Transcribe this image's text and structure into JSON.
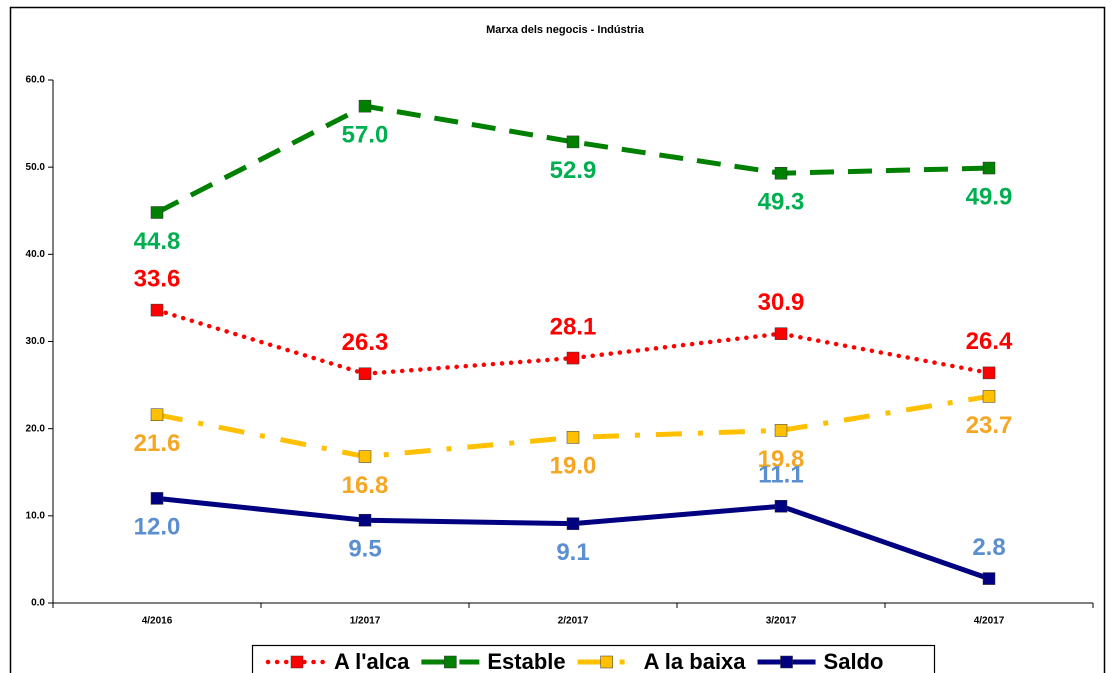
{
  "chart_data": {
    "type": "line",
    "title": "Marxa dels negocis - Indústria",
    "categories": [
      "4/2016",
      "1/2017",
      "2/2017",
      "3/2017",
      "4/2017"
    ],
    "series": [
      {
        "name": "A l'alca",
        "color": "#ff0000",
        "label_color": "#ff0000",
        "line_style": "dotted",
        "values": [
          33.6,
          26.3,
          28.1,
          30.9,
          26.4
        ],
        "value_labels": [
          "33.6",
          "26.3",
          "28.1",
          "30.9",
          "26.4"
        ]
      },
      {
        "name": "Estable",
        "color": "#008000",
        "label_color": "#00b050",
        "line_style": "dashed",
        "values": [
          44.8,
          57.0,
          52.9,
          49.3,
          49.9
        ],
        "value_labels": [
          "44.8",
          "57.0",
          "52.9",
          "49.3",
          "49.9"
        ]
      },
      {
        "name": "A la baixa",
        "color": "#ffc000",
        "label_color": "#f5a623",
        "line_style": "dashdot",
        "values": [
          21.6,
          16.8,
          19.0,
          19.8,
          23.7
        ],
        "value_labels": [
          "21.6",
          "16.8",
          "19.0",
          "19.8",
          "23.7"
        ]
      },
      {
        "name": "Saldo",
        "color": "#000080",
        "label_color": "#5b8fd0",
        "line_style": "solid",
        "values": [
          12.0,
          9.5,
          9.1,
          11.1,
          2.8
        ],
        "value_labels": [
          "12.0",
          "9.5",
          "9.1",
          "11.1",
          "2.8"
        ]
      }
    ],
    "ylim": [
      0,
      60
    ],
    "yticks": [
      {
        "value": 0,
        "label": "0.0"
      },
      {
        "value": 10,
        "label": "10.0"
      },
      {
        "value": 20,
        "label": "20.0"
      },
      {
        "value": 30,
        "label": "30.0"
      },
      {
        "value": 40,
        "label": "40.0"
      },
      {
        "value": 50,
        "label": "50.0"
      },
      {
        "value": 60,
        "label": "60.0"
      }
    ],
    "grid": false,
    "legend": "bottom"
  }
}
